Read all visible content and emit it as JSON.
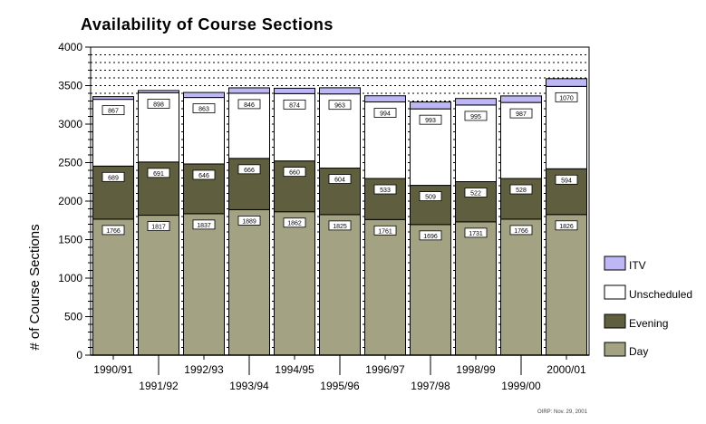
{
  "chart_data": {
    "type": "bar",
    "stacked": true,
    "title": "Availability of Course Sections",
    "xlabel": "",
    "ylabel": "# of Course Sections",
    "ylim": [
      0,
      4000
    ],
    "yticks": [
      0,
      500,
      1000,
      1500,
      2000,
      2500,
      3000,
      3500,
      4000
    ],
    "grid": "dotted horizontal",
    "legend_position": "right",
    "categories": [
      "1990/91",
      "1991/92",
      "1992/93",
      "1993/94",
      "1994/95",
      "1995/96",
      "1996/97",
      "1997/98",
      "1998/99",
      "1999/00",
      "2000/01"
    ],
    "series": [
      {
        "name": "Day",
        "color": "#A3A383",
        "values": [
          1766,
          1817,
          1837,
          1889,
          1862,
          1825,
          1761,
          1696,
          1731,
          1766,
          1826
        ],
        "labels": [
          "1766",
          "1817",
          "1837",
          "1889",
          "1862",
          "1825",
          "1761",
          "1696",
          "1731",
          "1766",
          "1826"
        ]
      },
      {
        "name": "Evening",
        "color": "#5F5F3F",
        "values": [
          689,
          691,
          646,
          666,
          660,
          604,
          533,
          509,
          522,
          528,
          594
        ],
        "labels": [
          "689",
          "691",
          "646",
          "666",
          "660",
          "604",
          "533",
          "509",
          "522",
          "528",
          "594"
        ]
      },
      {
        "name": "Unscheduled",
        "color": "#FFFFFF",
        "values": [
          867,
          898,
          863,
          846,
          874,
          963,
          994,
          993,
          995,
          987,
          1070
        ],
        "labels": [
          "867",
          "898",
          "863",
          "846",
          "874",
          "963",
          "994",
          "993",
          "995",
          "987",
          "1070"
        ]
      },
      {
        "name": "ITV",
        "color": "#BDB8F5",
        "values": [
          35,
          30,
          65,
          70,
          70,
          80,
          80,
          90,
          85,
          85,
          100
        ]
      }
    ],
    "legend_order": [
      "ITV",
      "Unscheduled",
      "Evening",
      "Day"
    ],
    "footnote": "OIRP: Nov. 29, 2001"
  }
}
